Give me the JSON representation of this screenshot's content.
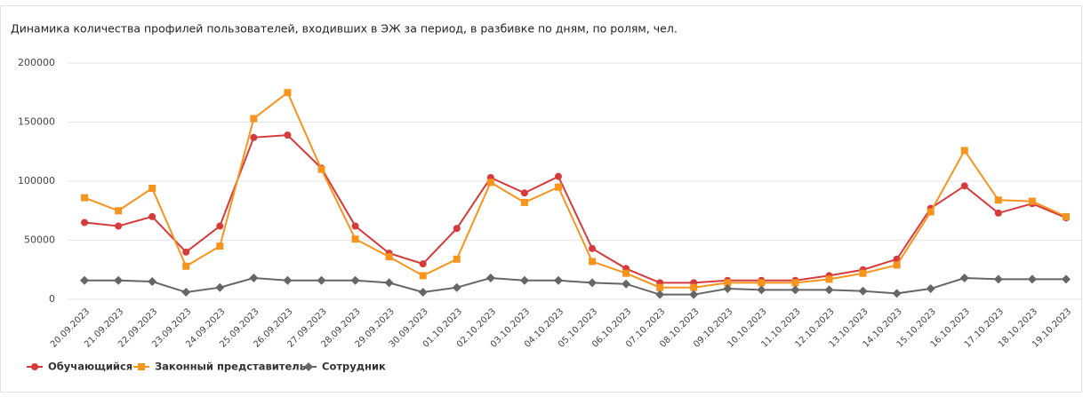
{
  "chart_data": {
    "type": "line",
    "title": "Динамика количества профилей пользователей, входивших в ЭЖ за период, в разбивке по дням, по ролям, чел.",
    "categories": [
      "20.09.2023",
      "21.09.2023",
      "22.09.2023",
      "23.09.2023",
      "24.09.2023",
      "25.09.2023",
      "26.09.2023",
      "27.09.2023",
      "28.09.2023",
      "29.09.2023",
      "30.09.2023",
      "01.10.2023",
      "02.10.2023",
      "03.10.2023",
      "04.10.2023",
      "05.10.2023",
      "06.10.2023",
      "07.10.2023",
      "08.10.2023",
      "09.10.2023",
      "10.10.2023",
      "11.10.2023",
      "12.10.2023",
      "13.10.2023",
      "14.10.2023",
      "15.10.2023",
      "16.10.2023",
      "17.10.2023",
      "18.10.2023",
      "19.10.2023"
    ],
    "series": [
      {
        "name": "Обучающийся",
        "color": "#d63a3a",
        "marker": "circle",
        "values": [
          65000,
          62000,
          70000,
          40000,
          62000,
          137000,
          139000,
          111000,
          62000,
          39000,
          30000,
          60000,
          103000,
          90000,
          104000,
          43000,
          26000,
          14000,
          14000,
          16000,
          16000,
          16000,
          20000,
          25000,
          34000,
          77000,
          96000,
          73000,
          81000,
          69000
        ]
      },
      {
        "name": "Законный представитель",
        "color": "#f7941d",
        "marker": "square",
        "values": [
          86000,
          75000,
          94000,
          28000,
          45000,
          153000,
          175000,
          110000,
          51000,
          36000,
          20000,
          34000,
          99000,
          82000,
          95000,
          32000,
          22000,
          10000,
          10000,
          14000,
          14000,
          14000,
          17000,
          22000,
          29000,
          74000,
          126000,
          84000,
          83000,
          70000
        ]
      },
      {
        "name": "Сотрудник",
        "color": "#666666",
        "marker": "diamond",
        "values": [
          16000,
          16000,
          15000,
          6000,
          10000,
          18000,
          16000,
          16000,
          16000,
          14000,
          6000,
          10000,
          18000,
          16000,
          16000,
          14000,
          13000,
          4000,
          4000,
          9000,
          8000,
          8000,
          8000,
          7000,
          5000,
          9000,
          18000,
          17000,
          17000,
          17000
        ]
      }
    ],
    "ylim": [
      0,
      200000
    ],
    "yticks": [
      0,
      50000,
      100000,
      150000,
      200000
    ],
    "grid": true
  }
}
